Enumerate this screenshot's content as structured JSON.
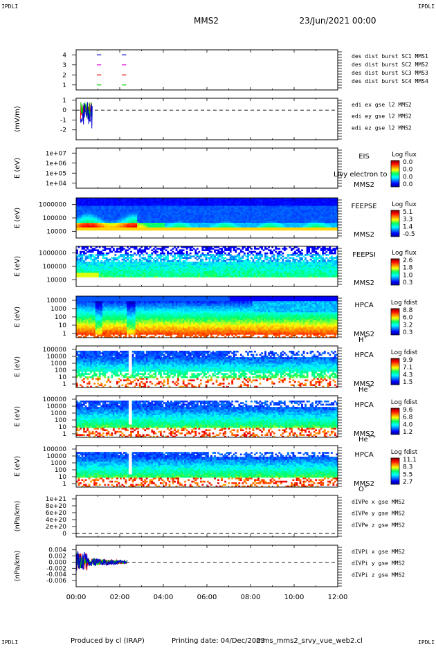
{
  "header": {
    "corner_label": "IPDLI",
    "spacecraft": "MMS2",
    "date": "23/Jun/2021 00:00"
  },
  "footer": {
    "produced_by": "Produced by cl (IRAP)",
    "printing_date": "Printing date: 04/Dec/2023",
    "filename": "mms_mms2_srvy_vue_web2.cl"
  },
  "colors": {
    "red": "#dd0000",
    "magenta": "#dd00dd",
    "green": "#00cc00",
    "blue": "#0000cc",
    "spectrogram_bg": "#1a1ae6"
  },
  "chart_data": {
    "type": "heatmap",
    "x_axis": {
      "range_hours": [
        0,
        12
      ],
      "ticks": [
        "00:00",
        "02:00",
        "04:00",
        "06:00",
        "08:00",
        "10:00",
        "12:00"
      ]
    },
    "panels": [
      {
        "id": "burst",
        "type": "line",
        "ylim": [
          0.5,
          4.5
        ],
        "ylabel": "",
        "yticks": [
          "1",
          "2",
          "3",
          "4"
        ],
        "legend": [
          {
            "text": "des dist burst SC1 MMS1",
            "color": "#0000cc"
          },
          {
            "text": "des dist burst SC2 MMS2",
            "color": "#dd00dd"
          },
          {
            "text": "des dist burst SC3 MMS3",
            "color": "#dd0000"
          },
          {
            "text": "des dist burst SC4 MMS4",
            "color": "#00cc00"
          }
        ],
        "segments": [
          {
            "y": 4,
            "x": [
              [
                0.95,
                1.15
              ],
              [
                2.1,
                2.3
              ]
            ]
          },
          {
            "y": 3,
            "x": [
              [
                0.95,
                1.15
              ],
              [
                2.1,
                2.3
              ]
            ]
          },
          {
            "y": 2,
            "x": [
              [
                0.95,
                1.15
              ],
              [
                2.1,
                2.3
              ]
            ]
          },
          {
            "y": 1,
            "x": [
              [
                0.95,
                1.15
              ],
              [
                2.1,
                2.3
              ]
            ]
          }
        ]
      },
      {
        "id": "edi",
        "type": "line",
        "ylim": [
          -3,
          1.2
        ],
        "ylabel": "(mV/m)",
        "yticks": [
          "-2",
          "-1",
          "0",
          "1"
        ],
        "legend": [
          {
            "text": "edi ex gse l2 MMS2",
            "color": "#dd0000"
          },
          {
            "text": "edi ey gse l2 MMS2",
            "color": "#00cc00"
          },
          {
            "text": "edi ez gse l2 MMS2",
            "color": "#0000cc"
          }
        ],
        "x_start": 0.2,
        "x_end": 0.75
      },
      {
        "id": "eis",
        "type": "heatmap",
        "ylabel": "E (eV)",
        "yticks": [
          "1e+04",
          "1e+05",
          "1e+06",
          "1e+07"
        ],
        "labels": [
          "EIS",
          "MMS2"
        ],
        "overlay": "Livy electron to",
        "colorbar": {
          "title": "Log flux",
          "ticks": [
            "0.0",
            "0.0",
            "0.0",
            "0.0"
          ]
        }
      },
      {
        "id": "feepse",
        "type": "heatmap",
        "ylabel": "E (eV)",
        "yticks": [
          "10000",
          "100000",
          "1000000"
        ],
        "labels": [
          "FEEPSE",
          "MMS2"
        ],
        "colorbar": {
          "title": "Log flux",
          "ticks": [
            "5.1",
            "3.3",
            "1.4",
            "-0.5"
          ]
        }
      },
      {
        "id": "feepsi",
        "type": "heatmap",
        "ylabel": "E (eV)",
        "yticks": [
          "10000",
          "100000",
          "1000000"
        ],
        "labels": [
          "FEEPSI",
          "MMS2"
        ],
        "colorbar": {
          "title": "Log flux",
          "ticks": [
            "2.6",
            "1.8",
            "1.0",
            "0.3"
          ]
        }
      },
      {
        "id": "hpca-h",
        "type": "heatmap",
        "ylabel": "E (eV)",
        "yticks": [
          "1",
          "10",
          "100",
          "1000",
          "10000"
        ],
        "labels": [
          "HPCA",
          "MMS2"
        ],
        "species": "H",
        "species_sup": "+",
        "colorbar": {
          "title": "Log fdist",
          "ticks": [
            "8.8",
            "6.0",
            "3.2",
            "0.3"
          ]
        }
      },
      {
        "id": "hpca-he",
        "type": "heatmap",
        "ylabel": "E (eV)",
        "yticks": [
          "1",
          "10",
          "100",
          "1000",
          "10000",
          "100000"
        ],
        "labels": [
          "HPCA",
          "MMS2"
        ],
        "species": "He",
        "species_sup": "+",
        "colorbar": {
          "title": "Log fdist",
          "ticks": [
            "9.9",
            "7.1",
            "4.3",
            "1.5"
          ]
        }
      },
      {
        "id": "hpca-hepp",
        "type": "heatmap",
        "ylabel": "E (eV)",
        "yticks": [
          "1",
          "10",
          "100",
          "1000",
          "10000",
          "100000"
        ],
        "labels": [
          "HPCA",
          "MMS2"
        ],
        "species": "He",
        "species_sup": "++",
        "colorbar": {
          "title": "Log fdist",
          "ticks": [
            "9.6",
            "6.8",
            "4.0",
            "1.2"
          ]
        }
      },
      {
        "id": "hpca-o",
        "type": "heatmap",
        "ylabel": "E (eV)",
        "yticks": [
          "1",
          "10",
          "100",
          "1000",
          "10000",
          "100000"
        ],
        "labels": [
          "HPCA",
          "MMS2"
        ],
        "species": "O",
        "species_sup": "+",
        "colorbar": {
          "title": "Log fdist",
          "ticks": [
            "11.1",
            "8.3",
            "5.5",
            "2.7"
          ]
        }
      },
      {
        "id": "divpe",
        "type": "line",
        "ylim": [
          -1e+20,
          1.1e+21
        ],
        "ylabel": "(nPa/km)",
        "yticks": [
          "0",
          "2e+20",
          "4e+20",
          "6e+20",
          "8e+20",
          "1e+21"
        ],
        "legend": [
          {
            "text": "dIVPe x gse MMS2",
            "color": "#dd0000"
          },
          {
            "text": "dIVPe y gse MMS2",
            "color": "#00cc00"
          },
          {
            "text": "dIVPe z gse MMS2",
            "color": "#0000cc"
          }
        ]
      },
      {
        "id": "divpi",
        "type": "line",
        "ylim": [
          -0.008,
          0.0055
        ],
        "ylabel": "(nPa/km)",
        "yticks": [
          "-0.006",
          "-0.004",
          "-0.002",
          "0.000",
          "0.002",
          "0.004"
        ],
        "legend": [
          {
            "text": "dIVPi x gse MMS2",
            "color": "#dd0000"
          },
          {
            "text": "dIVPi y gse MMS2",
            "color": "#00cc00"
          },
          {
            "text": "dIVPi z gse MMS2",
            "color": "#0000cc"
          }
        ],
        "x_start": 0.0,
        "x_end": 2.35
      }
    ]
  }
}
